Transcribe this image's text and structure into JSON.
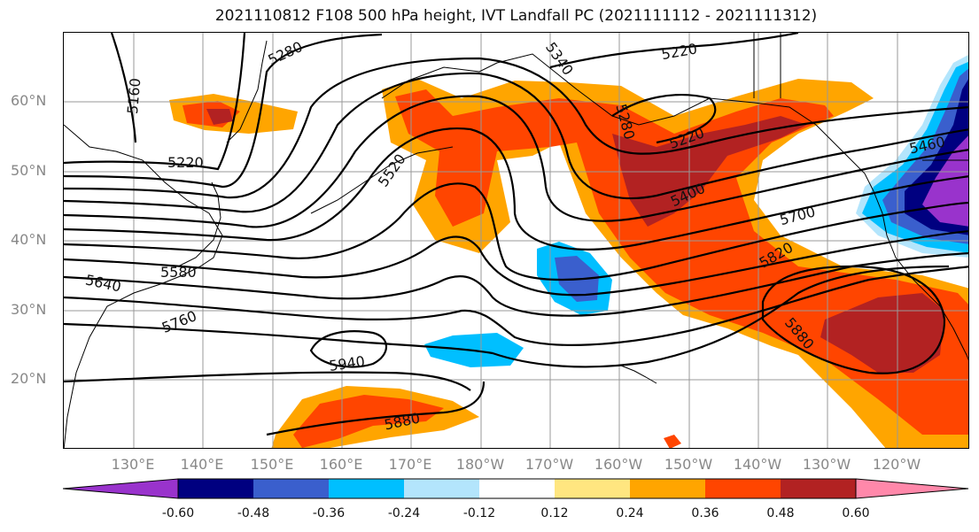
{
  "title": "2021110812 F108 500 hPa height, IVT Landfall PC (2021111112 - 2021111312)",
  "lat_labels": [
    "60°N",
    "50°N",
    "40°N",
    "30°N",
    "20°N"
  ],
  "lon_labels": [
    "130°E",
    "140°E",
    "150°E",
    "160°E",
    "170°E",
    "180°W",
    "170°W",
    "160°W",
    "150°W",
    "140°W",
    "130°W",
    "120°W"
  ],
  "colorbar": {
    "ticks": [
      "-0.60",
      "-0.48",
      "-0.36",
      "-0.24",
      "-0.12",
      "0.12",
      "0.24",
      "0.36",
      "0.48",
      "0.60"
    ],
    "colors": [
      "#9933cc",
      "#000080",
      "#3a5fcd",
      "#00bfff",
      "#b3e5fc",
      "#ffffff",
      "#ffe680",
      "#ffa500",
      "#ff4500",
      "#b22222",
      "#ff88aa"
    ]
  },
  "contour_labels": [
    "5160",
    "5280",
    "5340",
    "5220",
    "5220",
    "5280",
    "5220",
    "5520",
    "5400",
    "5460",
    "5700",
    "5820",
    "5580",
    "5640",
    "5760",
    "5940",
    "5880",
    "5880"
  ],
  "chart_data": {
    "type": "heatmap",
    "title": "2021110812 F108 500 hPa height, IVT Landfall PC (2021111112 - 2021111312)",
    "field": "IVT Landfall PC",
    "contour_field": "500 hPa height",
    "contour_levels": [
      5160,
      5220,
      5280,
      5340,
      5400,
      5460,
      5520,
      5580,
      5640,
      5700,
      5760,
      5820,
      5880,
      5940
    ],
    "lon_range": [
      "120°E",
      "115°W"
    ],
    "lat_range": [
      "10°N",
      "70°N"
    ],
    "color_levels": [
      -0.6,
      -0.48,
      -0.36,
      -0.24,
      -0.12,
      0.12,
      0.24,
      0.36,
      0.48,
      0.6
    ]
  }
}
